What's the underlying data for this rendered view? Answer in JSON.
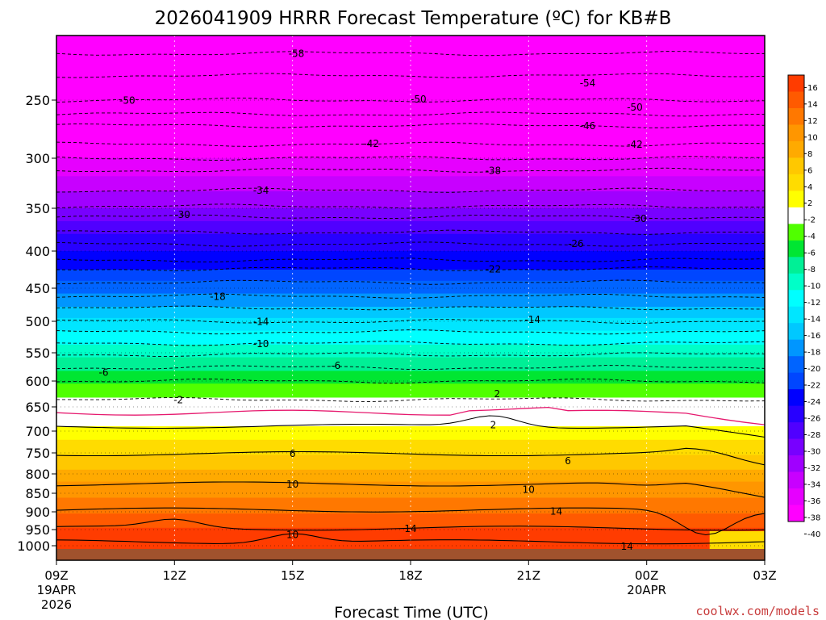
{
  "chart_data": {
    "type": "heatmap",
    "title": "2026041909 HRRR Forecast Temperature (ºC) for KB#B",
    "xlabel": "Forecast Time (UTC)",
    "ylabel": "",
    "credit": "coolwx.com/models",
    "x_ticks": [
      {
        "label": "09Z",
        "sub1": "19APR",
        "sub2": "2026",
        "hour": 0
      },
      {
        "label": "12Z",
        "sub1": "",
        "sub2": "",
        "hour": 3
      },
      {
        "label": "15Z",
        "sub1": "",
        "sub2": "",
        "hour": 6
      },
      {
        "label": "18Z",
        "sub1": "",
        "sub2": "",
        "hour": 9
      },
      {
        "label": "21Z",
        "sub1": "",
        "sub2": "",
        "hour": 12
      },
      {
        "label": "00Z",
        "sub1": "20APR",
        "sub2": "",
        "hour": 15
      },
      {
        "label": "03Z",
        "sub1": "",
        "sub2": "",
        "hour": 18
      }
    ],
    "y_ticks": [
      250,
      300,
      350,
      400,
      450,
      500,
      550,
      600,
      650,
      700,
      750,
      800,
      850,
      900,
      950,
      1000
    ],
    "y_axis": "pressure (hPa), decreasing upward",
    "xlim": [
      0,
      18
    ],
    "ylim": [
      1010,
      200
    ],
    "colorbar": {
      "ticks": [
        "16",
        "14",
        "12",
        "10",
        "8",
        "6",
        "4",
        "2",
        "-2",
        "-4",
        "-6",
        "-8",
        "-10",
        "-12",
        "-14",
        "-16",
        "-18",
        "-20",
        "-22",
        "-24",
        "-26",
        "-28",
        "-30",
        "-32",
        "-34",
        "-36",
        "-38",
        "-40"
      ],
      "colors": [
        "#ff3c00",
        "#ff5a00",
        "#ff7800",
        "#ff9600",
        "#ffaa00",
        "#ffc800",
        "#ffdc00",
        "#ffff00",
        "#ffffff",
        "#50ff00",
        "#00e632",
        "#00f096",
        "#00ffc8",
        "#00ffff",
        "#00e6ff",
        "#00c8ff",
        "#0096ff",
        "#0064ff",
        "#0046ff",
        "#0000ff",
        "#2800ff",
        "#5000ff",
        "#7800ff",
        "#a000ff",
        "#c800ff",
        "#e600ff",
        "#ff00ff"
      ]
    },
    "contour_labels": [
      {
        "text": "-58",
        "hour": 6.1,
        "p": 212
      },
      {
        "text": "-50",
        "hour": 1.8,
        "p": 250
      },
      {
        "text": "-50",
        "hour": 9.2,
        "p": 249
      },
      {
        "text": "-54",
        "hour": 13.5,
        "p": 236
      },
      {
        "text": "-50",
        "hour": 14.7,
        "p": 256
      },
      {
        "text": "-46",
        "hour": 13.5,
        "p": 272
      },
      {
        "text": "-42",
        "hour": 8.0,
        "p": 287
      },
      {
        "text": "-42",
        "hour": 14.7,
        "p": 288
      },
      {
        "text": "-38",
        "hour": 11.1,
        "p": 312
      },
      {
        "text": "-34",
        "hour": 5.2,
        "p": 332
      },
      {
        "text": "-30",
        "hour": 3.2,
        "p": 357
      },
      {
        "text": "-30",
        "hour": 14.8,
        "p": 362
      },
      {
        "text": "-26",
        "hour": 13.2,
        "p": 391
      },
      {
        "text": "-22",
        "hour": 11.1,
        "p": 424
      },
      {
        "text": "-18",
        "hour": 4.1,
        "p": 462
      },
      {
        "text": "-14",
        "hour": 5.2,
        "p": 500
      },
      {
        "text": "-14",
        "hour": 12.1,
        "p": 497
      },
      {
        "text": "-10",
        "hour": 5.2,
        "p": 535
      },
      {
        "text": "-6",
        "hour": 1.2,
        "p": 584
      },
      {
        "text": "-6",
        "hour": 7.1,
        "p": 572
      },
      {
        "text": "-2",
        "hour": 3.1,
        "p": 636
      },
      {
        "text": "2",
        "hour": 11.2,
        "p": 624
      },
      {
        "text": "2",
        "hour": 11.1,
        "p": 687
      },
      {
        "text": "6",
        "hour": 6.0,
        "p": 751
      },
      {
        "text": "6",
        "hour": 13.0,
        "p": 768
      },
      {
        "text": "10",
        "hour": 6.0,
        "p": 826
      },
      {
        "text": "10",
        "hour": 12.0,
        "p": 840
      },
      {
        "text": "14",
        "hour": 12.7,
        "p": 898
      },
      {
        "text": "14",
        "hour": 9.0,
        "p": 947
      },
      {
        "text": "10",
        "hour": 6.0,
        "p": 965
      },
      {
        "text": "14",
        "hour": 14.5,
        "p": 1001
      }
    ]
  }
}
